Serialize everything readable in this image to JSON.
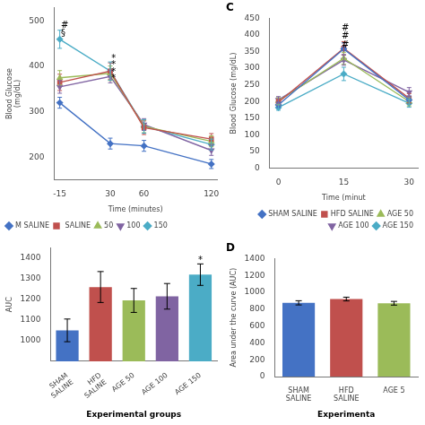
{
  "chart_data": [
    {
      "type": "line",
      "xlabel": "Time (minutes)",
      "ylabel": "Blood Glucose\n(mg/dL)",
      "x": [
        -15,
        30,
        60,
        120
      ],
      "xlim": [
        -20,
        125
      ],
      "xticks": [
        -15,
        30,
        60,
        120
      ],
      "ylim": [
        150,
        530
      ],
      "yticks": [
        200,
        300,
        400,
        500
      ],
      "grid": false,
      "legend": "lower left",
      "series": [
        {
          "name": "M SALINE",
          "color": "#4472C4",
          "marker": "diamond",
          "values": [
            320,
            230,
            225,
            185
          ],
          "errors": [
            12,
            12,
            12,
            10
          ]
        },
        {
          "name": " SALINE",
          "color": "#C0504D",
          "marker": "square",
          "values": [
            365,
            390,
            265,
            240
          ],
          "errors": [
            18,
            18,
            15,
            12
          ]
        },
        {
          "name": "50",
          "color": "#9BBB59",
          "marker": "triangle_up",
          "values": [
            375,
            385,
            268,
            235
          ],
          "errors": [
            16,
            16,
            14,
            12
          ]
        },
        {
          "name": "100",
          "color": "#8064A2",
          "marker": "triangle_down",
          "values": [
            355,
            378,
            272,
            215
          ],
          "errors": [
            14,
            14,
            13,
            11
          ]
        },
        {
          "name": "150",
          "color": "#4BACC6",
          "marker": "diamond",
          "values": [
            460,
            390,
            268,
            228
          ],
          "errors": [
            20,
            20,
            15,
            12
          ]
        }
      ],
      "annotations": [
        {
          "text": "#",
          "x": -14,
          "y": 490
        },
        {
          "text": "§",
          "x": -14,
          "y": 472
        },
        {
          "text": "*",
          "x": 31,
          "y": 418
        },
        {
          "text": "*",
          "x": 31,
          "y": 403
        },
        {
          "text": "*",
          "x": 31,
          "y": 388
        },
        {
          "text": "*",
          "x": 31,
          "y": 373
        }
      ]
    },
    {
      "type": "bar",
      "xlabel": "Experimental groups",
      "ylabel": "AUC",
      "categories": [
        "SHAM\nSALINE",
        "HFD\nSALINE",
        "AGE 50",
        "AGE 100",
        "AGE 150"
      ],
      "values": [
        1050,
        1260,
        1195,
        1215,
        1320
      ],
      "errors": [
        55,
        75,
        58,
        62,
        52
      ],
      "colors": [
        "#4472C4",
        "#C0504D",
        "#9BBB59",
        "#8064A2",
        "#4BACC6"
      ],
      "ylim": [
        900,
        1450
      ],
      "yticks": [
        1000,
        1100,
        1200,
        1300,
        1400
      ],
      "grid": false,
      "annotations": [
        {
          "text": "*",
          "x": "AGE 150",
          "y": 1387
        }
      ]
    },
    {
      "type": "line",
      "title": "C",
      "xlabel": "Time (minut",
      "ylabel": "Blood Glucose (mg/dL)",
      "x": [
        0,
        15,
        30
      ],
      "xlim": [
        -2,
        32
      ],
      "xticks": [
        0,
        15,
        30
      ],
      "ylim": [
        0,
        450
      ],
      "yticks": [
        0,
        50,
        100,
        150,
        200,
        250,
        300,
        350,
        400,
        450
      ],
      "grid": false,
      "legend": "lower right",
      "series": [
        {
          "name": "SHAM SALINE",
          "color": "#4472C4",
          "marker": "diamond",
          "values": [
            190,
            358,
            205
          ],
          "errors": [
            8,
            18,
            12
          ]
        },
        {
          "name": "HFD SALINE",
          "color": "#C0504D",
          "marker": "square",
          "values": [
            198,
            360,
            210
          ],
          "errors": [
            9,
            20,
            14
          ]
        },
        {
          "name": "AGE 50",
          "color": "#9BBB59",
          "marker": "triangle_up",
          "values": [
            202,
            330,
            200
          ],
          "errors": [
            10,
            18,
            13
          ]
        },
        {
          "name": "AGE 100",
          "color": "#8064A2",
          "marker": "triangle_down",
          "values": [
            205,
            325,
            228
          ],
          "errors": [
            10,
            16,
            14
          ]
        },
        {
          "name": "AGE 150",
          "color": "#4BACC6",
          "marker": "diamond",
          "values": [
            182,
            283,
            195
          ],
          "errors": [
            8,
            20,
            12
          ]
        }
      ],
      "annotations": [
        {
          "text": "#",
          "x": 14.5,
          "y": 420
        },
        {
          "text": "#",
          "x": 14.5,
          "y": 395
        },
        {
          "text": "#",
          "x": 14.5,
          "y": 368
        }
      ]
    },
    {
      "type": "bar",
      "title": "D",
      "xlabel": "Experimenta",
      "ylabel": "Area under the curve (AUC)",
      "categories": [
        "SHAM\nSALINE",
        "HFD\nSALINE",
        "AGE 5"
      ],
      "values": [
        875,
        920,
        870
      ],
      "errors": [
        25,
        22,
        22
      ],
      "colors": [
        "#4472C4",
        "#C0504D",
        "#9BBB59"
      ],
      "ylim": [
        0,
        1400
      ],
      "yticks": [
        0,
        200,
        400,
        600,
        800,
        1000,
        1200,
        1400
      ],
      "grid": false
    }
  ]
}
